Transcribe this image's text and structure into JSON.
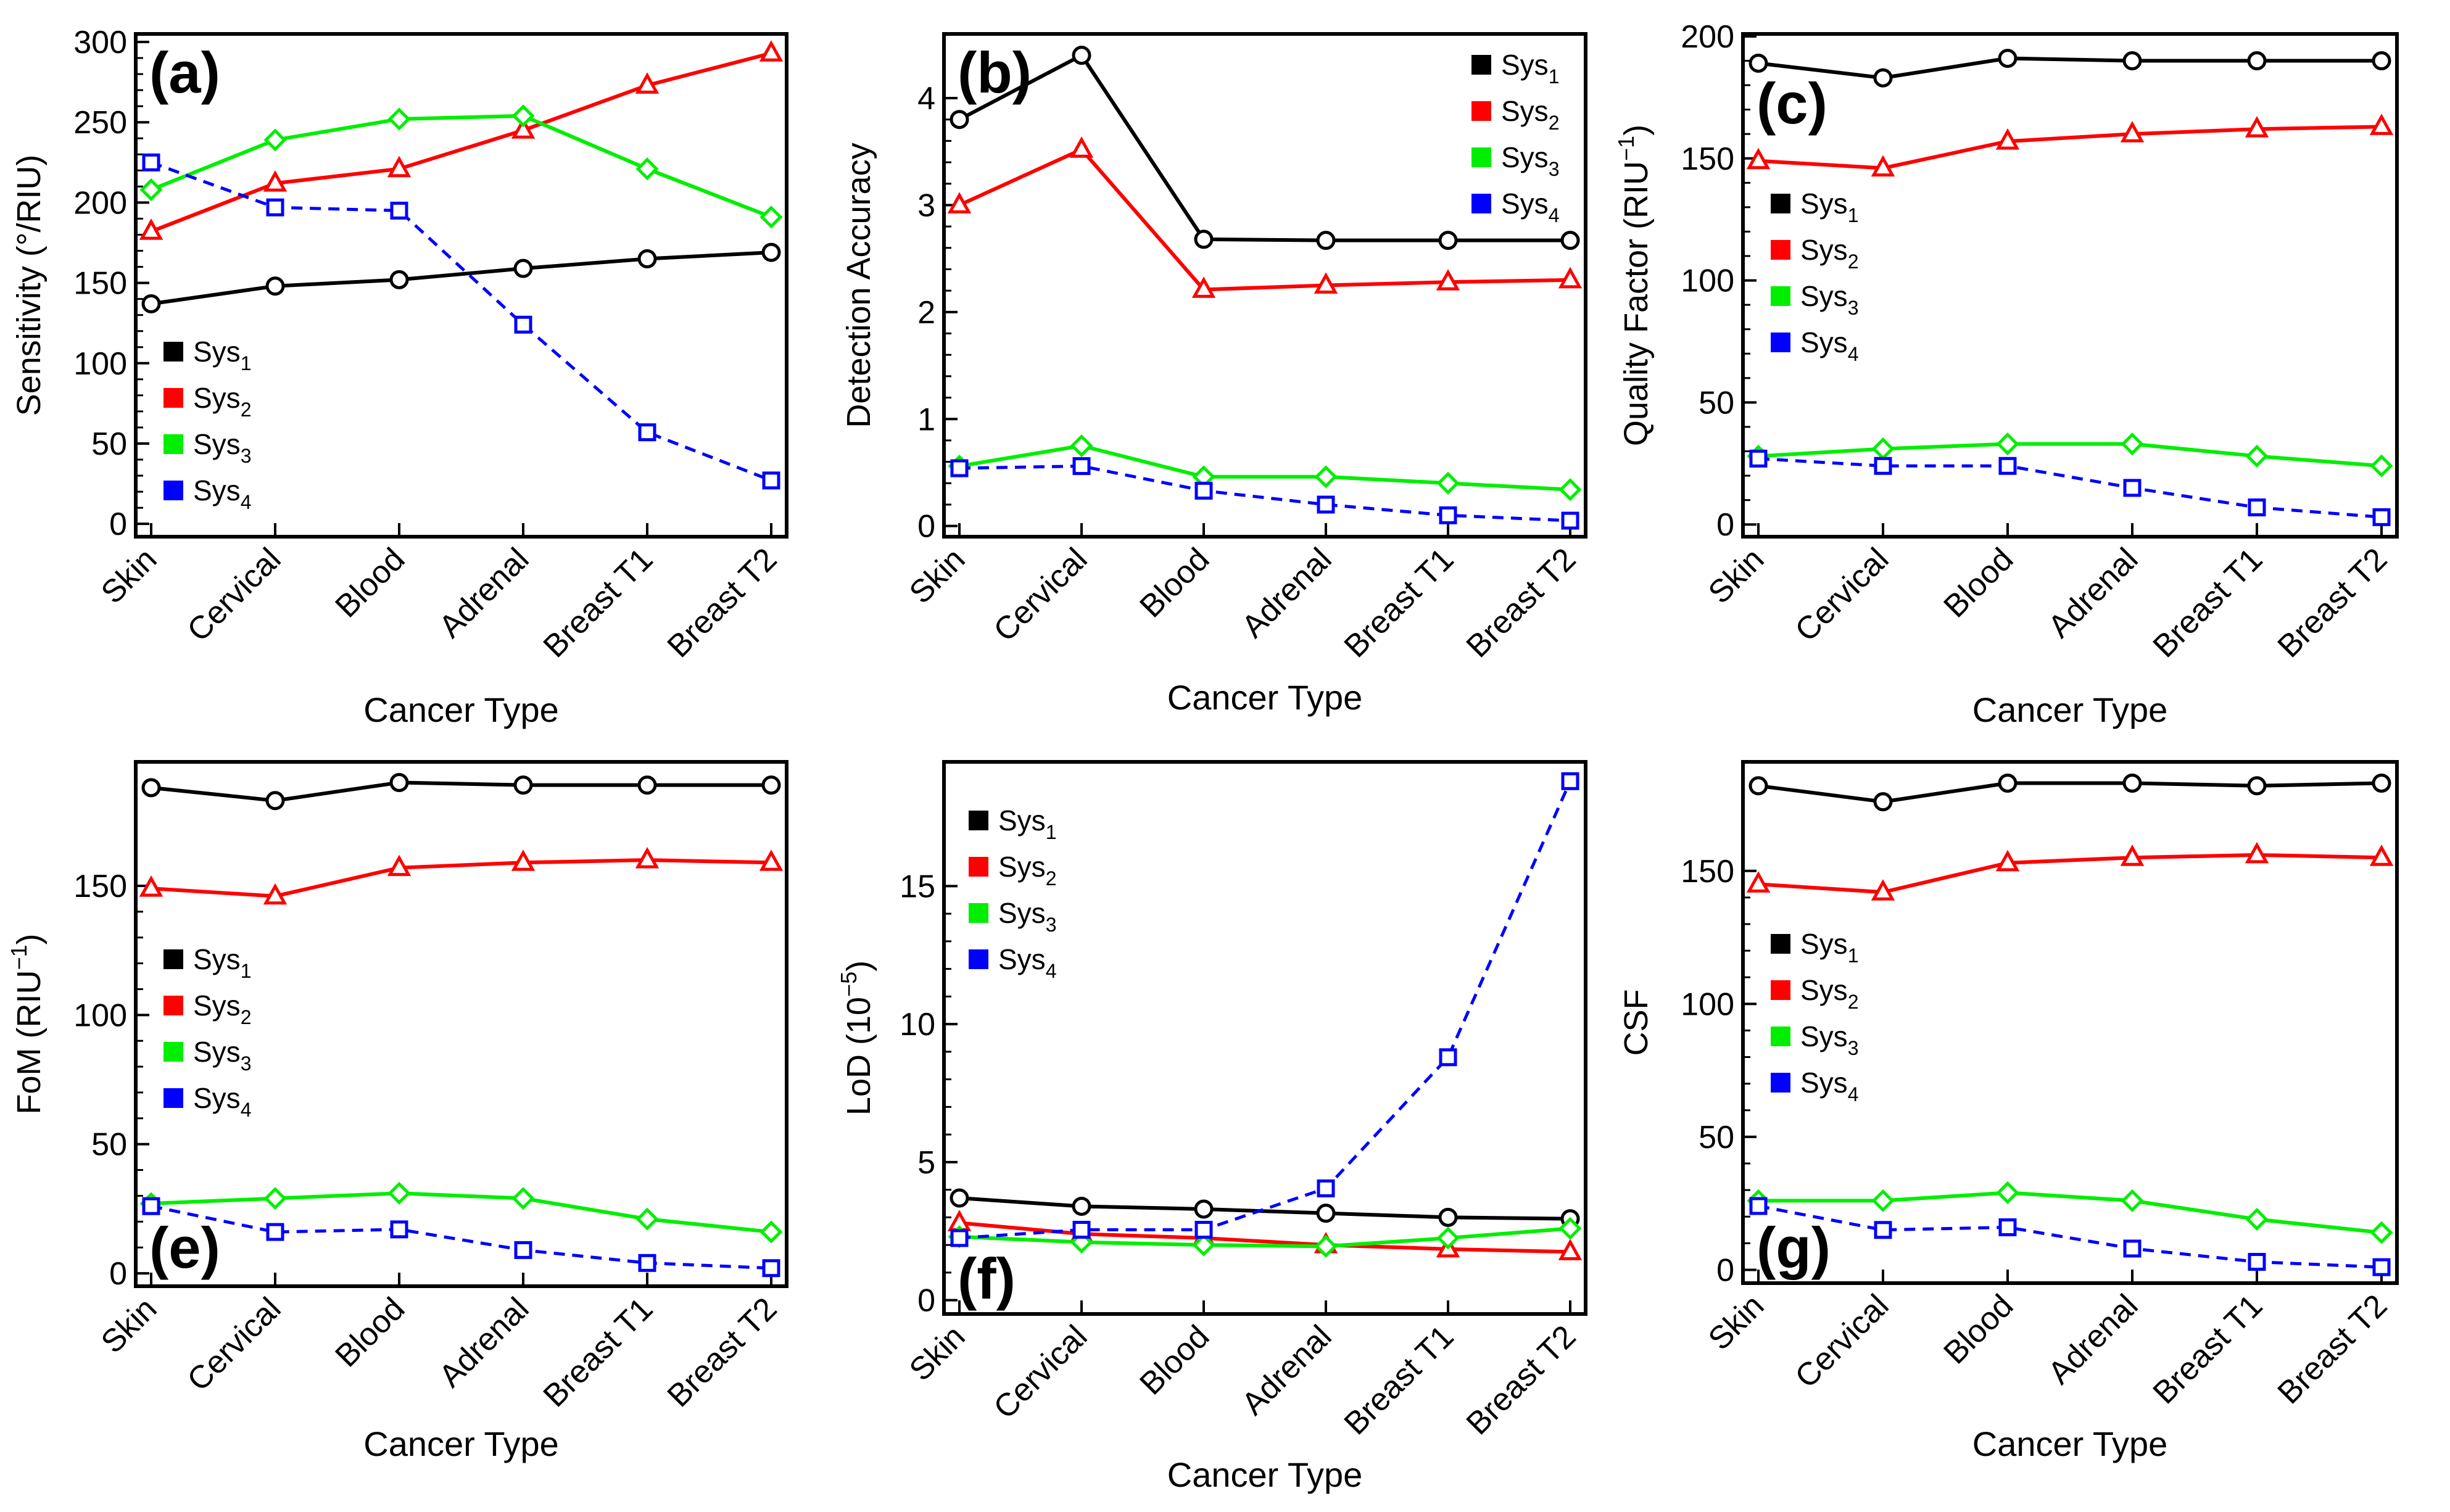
{
  "figure": {
    "categories": [
      "Skin",
      "Cervical",
      "Blood",
      "Adrenal",
      "Breast T1",
      "Breast T2"
    ],
    "xlabel": "Cancer Type",
    "legend_base": "Sys",
    "series_styles": [
      {
        "name": "Sys1",
        "sub": "1",
        "color": "#000000",
        "marker": "circle",
        "dash": false
      },
      {
        "name": "Sys2",
        "sub": "2",
        "color": "#ff0000",
        "marker": "triangle",
        "dash": false
      },
      {
        "name": "Sys3",
        "sub": "3",
        "color": "#00ee00",
        "marker": "diamond",
        "dash": false
      },
      {
        "name": "Sys4",
        "sub": "4",
        "color": "#0000ff",
        "marker": "square",
        "dash": true
      }
    ]
  },
  "chart_data": [
    {
      "type": "line",
      "panel": "(a)",
      "title": "",
      "xlabel": "Cancer Type",
      "ylabel": "Sensitivity (°/RIU)",
      "ylim": [
        -8,
        305
      ],
      "yticks": [
        0,
        50,
        100,
        150,
        200,
        250,
        300
      ],
      "categories": [
        "Skin",
        "Cervical",
        "Blood",
        "Adrenal",
        "Breast T1",
        "Breast T2"
      ],
      "legend_position": "mid-left",
      "series": [
        {
          "name": "Sys1",
          "values": [
            137,
            148,
            152,
            159,
            165,
            169
          ]
        },
        {
          "name": "Sys2",
          "values": [
            182,
            212,
            221,
            245,
            273,
            293
          ]
        },
        {
          "name": "Sys3",
          "values": [
            208,
            239,
            252,
            254,
            221,
            191
          ]
        },
        {
          "name": "Sys4",
          "values": [
            225,
            197,
            195,
            124,
            57,
            27
          ]
        }
      ]
    },
    {
      "type": "line",
      "panel": "(b)",
      "title": "",
      "xlabel": "Cancer Type",
      "ylabel": "Detection Accuracy",
      "ylim": [
        -0.1,
        4.6
      ],
      "yticks": [
        0,
        1,
        2,
        3,
        4
      ],
      "categories": [
        "Skin",
        "Cervical",
        "Blood",
        "Adrenal",
        "Breast T1",
        "Breast T2"
      ],
      "legend_position": "top-right",
      "series": [
        {
          "name": "Sys1",
          "values": [
            3.8,
            4.4,
            2.68,
            2.67,
            2.67,
            2.67
          ]
        },
        {
          "name": "Sys2",
          "values": [
            3.0,
            3.52,
            2.21,
            2.25,
            2.28,
            2.3
          ]
        },
        {
          "name": "Sys3",
          "values": [
            0.56,
            0.75,
            0.46,
            0.46,
            0.4,
            0.34
          ]
        },
        {
          "name": "Sys4",
          "values": [
            0.54,
            0.56,
            0.33,
            0.2,
            0.1,
            0.05
          ]
        }
      ]
    },
    {
      "type": "line",
      "panel": "(c)",
      "title": "",
      "xlabel": "Cancer Type",
      "ylabel": "Quality Factor (RIU",
      "ylabel_sup": "−1",
      "ylabel_end": ")",
      "ylim": [
        -5,
        201
      ],
      "yticks": [
        0,
        50,
        100,
        150,
        200
      ],
      "categories": [
        "Skin",
        "Cervical",
        "Blood",
        "Adrenal",
        "Breast T1",
        "Breast T2"
      ],
      "legend_position": "mid-left",
      "series": [
        {
          "name": "Sys1",
          "values": [
            189,
            183,
            191,
            190,
            190,
            190
          ]
        },
        {
          "name": "Sys2",
          "values": [
            149,
            146,
            157,
            160,
            162,
            163
          ]
        },
        {
          "name": "Sys3",
          "values": [
            28,
            31,
            33,
            33,
            28,
            24
          ]
        },
        {
          "name": "Sys4",
          "values": [
            27,
            24,
            24,
            15,
            7,
            3
          ]
        }
      ]
    },
    {
      "type": "line",
      "panel": "(e)",
      "title": "",
      "xlabel": "Cancer Type",
      "ylabel": "FoM (RIU",
      "ylabel_sup": "−1",
      "ylabel_end": ")",
      "ylim": [
        -5,
        198
      ],
      "yticks": [
        0,
        50,
        100,
        150
      ],
      "categories": [
        "Skin",
        "Cervical",
        "Blood",
        "Adrenal",
        "Breast T1",
        "Breast T2"
      ],
      "legend_position": "mid-left",
      "series": [
        {
          "name": "Sys1",
          "values": [
            188,
            183,
            190,
            189,
            189,
            189
          ]
        },
        {
          "name": "Sys2",
          "values": [
            149,
            146,
            157,
            159,
            160,
            159
          ]
        },
        {
          "name": "Sys3",
          "values": [
            27,
            29,
            31,
            29,
            21,
            16
          ]
        },
        {
          "name": "Sys4",
          "values": [
            26,
            16,
            17,
            9,
            4,
            2
          ]
        }
      ]
    },
    {
      "type": "line",
      "panel": "(f)",
      "title": "",
      "xlabel": "Cancer Type",
      "ylabel": "LoD (10",
      "ylabel_sup": "−5",
      "ylabel_end": ")",
      "ylim": [
        -0.5,
        19.5
      ],
      "yticks": [
        0,
        5,
        10,
        15
      ],
      "categories": [
        "Skin",
        "Cervical",
        "Blood",
        "Adrenal",
        "Breast T1",
        "Breast T2"
      ],
      "legend_position": "top-left",
      "series": [
        {
          "name": "Sys1",
          "values": [
            3.7,
            3.4,
            3.3,
            3.15,
            3.0,
            2.95
          ]
        },
        {
          "name": "Sys2",
          "values": [
            2.8,
            2.4,
            2.25,
            2.0,
            1.85,
            1.75
          ]
        },
        {
          "name": "Sys3",
          "values": [
            2.3,
            2.1,
            2.0,
            1.95,
            2.25,
            2.6
          ]
        },
        {
          "name": "Sys4",
          "values": [
            2.25,
            2.55,
            2.55,
            4.05,
            8.8,
            18.8
          ]
        }
      ]
    },
    {
      "type": "line",
      "panel": "(g)",
      "title": "",
      "xlabel": "Cancer Type",
      "ylabel": "CSF",
      "ylim": [
        -5,
        191
      ],
      "yticks": [
        0,
        50,
        100,
        150
      ],
      "categories": [
        "Skin",
        "Cervical",
        "Blood",
        "Adrenal",
        "Breast T1",
        "Breast T2"
      ],
      "legend_position": "mid-left",
      "series": [
        {
          "name": "Sys1",
          "values": [
            182,
            176,
            183,
            183,
            182,
            183
          ]
        },
        {
          "name": "Sys2",
          "values": [
            145,
            142,
            153,
            155,
            156,
            155
          ]
        },
        {
          "name": "Sys3",
          "values": [
            26,
            26,
            29,
            26,
            19,
            14
          ]
        },
        {
          "name": "Sys4",
          "values": [
            24,
            15,
            16,
            8,
            3,
            1
          ]
        }
      ]
    }
  ]
}
